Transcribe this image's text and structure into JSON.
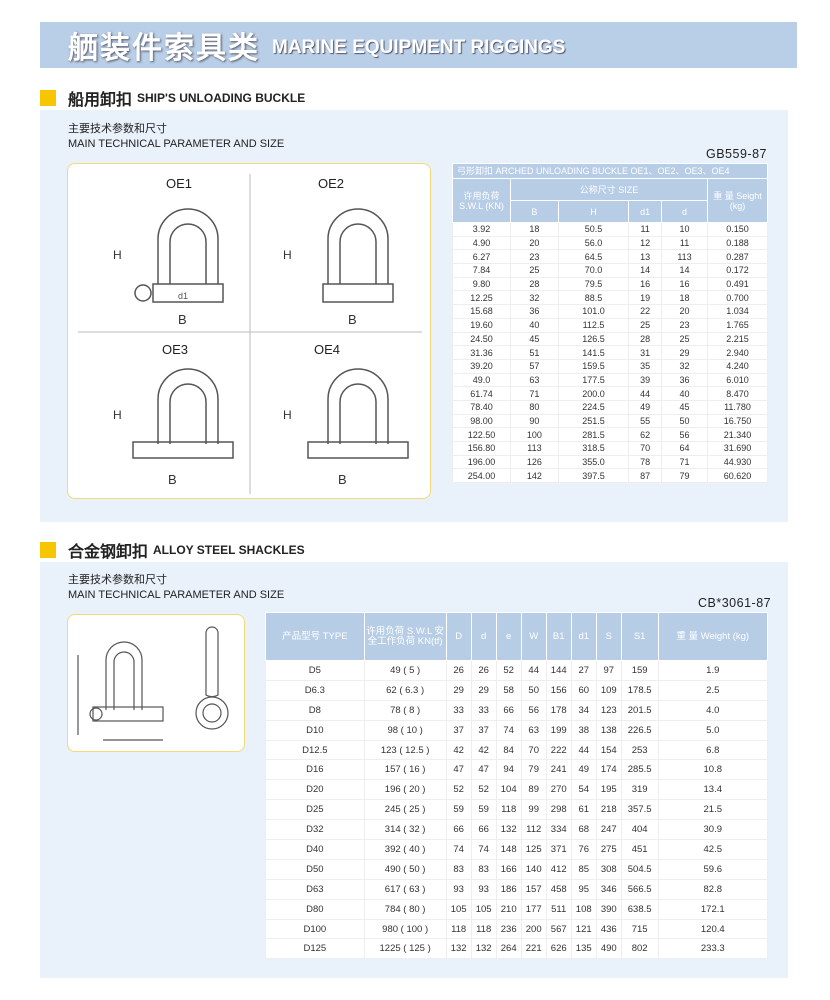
{
  "header": {
    "title_cn": "舾装件索具类",
    "title_en": "MARINE EQUIPMENT RIGGINGS"
  },
  "section1": {
    "title_cn": "船用卸扣",
    "title_en": "SHIP'S UNLOADING BUCKLE",
    "sub_cn": "主要技术参数和尺寸",
    "sub_en": "MAIN TECHNICAL PARAMETER AND SIZE",
    "standard": "GB559-87",
    "drawing_labels": [
      "OE1",
      "OE2",
      "OE3",
      "OE4"
    ],
    "table": {
      "caption": "弓形卸扣 ARCHED UNLOADING BUCKLE OE1、OE2、OE3、OE4",
      "swl_header": "许用负荷 S.W.L (KN)",
      "size_header": "公称尺寸  SIZE",
      "weight_header": "重 量 Seight (kg)",
      "size_cols": [
        "B",
        "H",
        "d1",
        "d"
      ],
      "rows": [
        [
          "3.92",
          "18",
          "50.5",
          "11",
          "10",
          "0.150"
        ],
        [
          "4.90",
          "20",
          "56.0",
          "12",
          "11",
          "0.188"
        ],
        [
          "6.27",
          "23",
          "64.5",
          "13",
          "113",
          "0.287"
        ],
        [
          "7.84",
          "25",
          "70.0",
          "14",
          "14",
          "0.172"
        ],
        [
          "9.80",
          "28",
          "79.5",
          "16",
          "16",
          "0.491"
        ],
        [
          "12.25",
          "32",
          "88.5",
          "19",
          "18",
          "0.700"
        ],
        [
          "15.68",
          "36",
          "101.0",
          "22",
          "20",
          "1.034"
        ],
        [
          "19.60",
          "40",
          "112.5",
          "25",
          "23",
          "1.765"
        ],
        [
          "24.50",
          "45",
          "126.5",
          "28",
          "25",
          "2.215"
        ],
        [
          "31.36",
          "51",
          "141.5",
          "31",
          "29",
          "2.940"
        ],
        [
          "39.20",
          "57",
          "159.5",
          "35",
          "32",
          "4.240"
        ],
        [
          "49.0",
          "63",
          "177.5",
          "39",
          "36",
          "6.010"
        ],
        [
          "61.74",
          "71",
          "200.0",
          "44",
          "40",
          "8.470"
        ],
        [
          "78.40",
          "80",
          "224.5",
          "49",
          "45",
          "11.780"
        ],
        [
          "98.00",
          "90",
          "251.5",
          "55",
          "50",
          "16.750"
        ],
        [
          "122.50",
          "100",
          "281.5",
          "62",
          "56",
          "21.340"
        ],
        [
          "156.80",
          "113",
          "318.5",
          "70",
          "64",
          "31.690"
        ],
        [
          "196.00",
          "126",
          "355.0",
          "78",
          "71",
          "44.930"
        ],
        [
          "254.00",
          "142",
          "397.5",
          "87",
          "79",
          "60.620"
        ]
      ]
    }
  },
  "section2": {
    "title_cn": "合金钢卸扣",
    "title_en": "ALLOY STEEL SHACKLES",
    "sub_cn": "主要技术参数和尺寸",
    "sub_en": "MAIN TECHNICAL PARAMETER AND SIZE",
    "standard": "CB*3061-87",
    "table": {
      "headers": [
        "产品型号 TYPE",
        "许用负荷 S.W.L 安全工作负荷 KN(tf)",
        "D",
        "d",
        "e",
        "W",
        "B1",
        "d1",
        "S",
        "S1",
        "重 量 Weight (kg)"
      ],
      "rows": [
        [
          "D5",
          "49 ( 5 )",
          "26",
          "26",
          "52",
          "44",
          "144",
          "27",
          "97",
          "159",
          "1.9"
        ],
        [
          "D6.3",
          "62 ( 6.3 )",
          "29",
          "29",
          "58",
          "50",
          "156",
          "60",
          "109",
          "178.5",
          "2.5"
        ],
        [
          "D8",
          "78 ( 8 )",
          "33",
          "33",
          "66",
          "56",
          "178",
          "34",
          "123",
          "201.5",
          "4.0"
        ],
        [
          "D10",
          "98 ( 10 )",
          "37",
          "37",
          "74",
          "63",
          "199",
          "38",
          "138",
          "226.5",
          "5.0"
        ],
        [
          "D12.5",
          "123 ( 12.5 )",
          "42",
          "42",
          "84",
          "70",
          "222",
          "44",
          "154",
          "253",
          "6.8"
        ],
        [
          "D16",
          "157 ( 16 )",
          "47",
          "47",
          "94",
          "79",
          "241",
          "49",
          "174",
          "285.5",
          "10.8"
        ],
        [
          "D20",
          "196 ( 20 )",
          "52",
          "52",
          "104",
          "89",
          "270",
          "54",
          "195",
          "319",
          "13.4"
        ],
        [
          "D25",
          "245 ( 25 )",
          "59",
          "59",
          "118",
          "99",
          "298",
          "61",
          "218",
          "357.5",
          "21.5"
        ],
        [
          "D32",
          "314 ( 32 )",
          "66",
          "66",
          "132",
          "112",
          "334",
          "68",
          "247",
          "404",
          "30.9"
        ],
        [
          "D40",
          "392 ( 40 )",
          "74",
          "74",
          "148",
          "125",
          "371",
          "76",
          "275",
          "451",
          "42.5"
        ],
        [
          "D50",
          "490 ( 50 )",
          "83",
          "83",
          "166",
          "140",
          "412",
          "85",
          "308",
          "504.5",
          "59.6"
        ],
        [
          "D63",
          "617 ( 63 )",
          "93",
          "93",
          "186",
          "157",
          "458",
          "95",
          "346",
          "566.5",
          "82.8"
        ],
        [
          "D80",
          "784 ( 80 )",
          "105",
          "105",
          "210",
          "177",
          "511",
          "108",
          "390",
          "638.5",
          "172.1"
        ],
        [
          "D100",
          "980 ( 100 )",
          "118",
          "118",
          "236",
          "200",
          "567",
          "121",
          "436",
          "715",
          "120.4"
        ],
        [
          "D125",
          "1225 ( 125 )",
          "132",
          "132",
          "264",
          "221",
          "626",
          "135",
          "490",
          "802",
          "233.3"
        ]
      ]
    }
  }
}
